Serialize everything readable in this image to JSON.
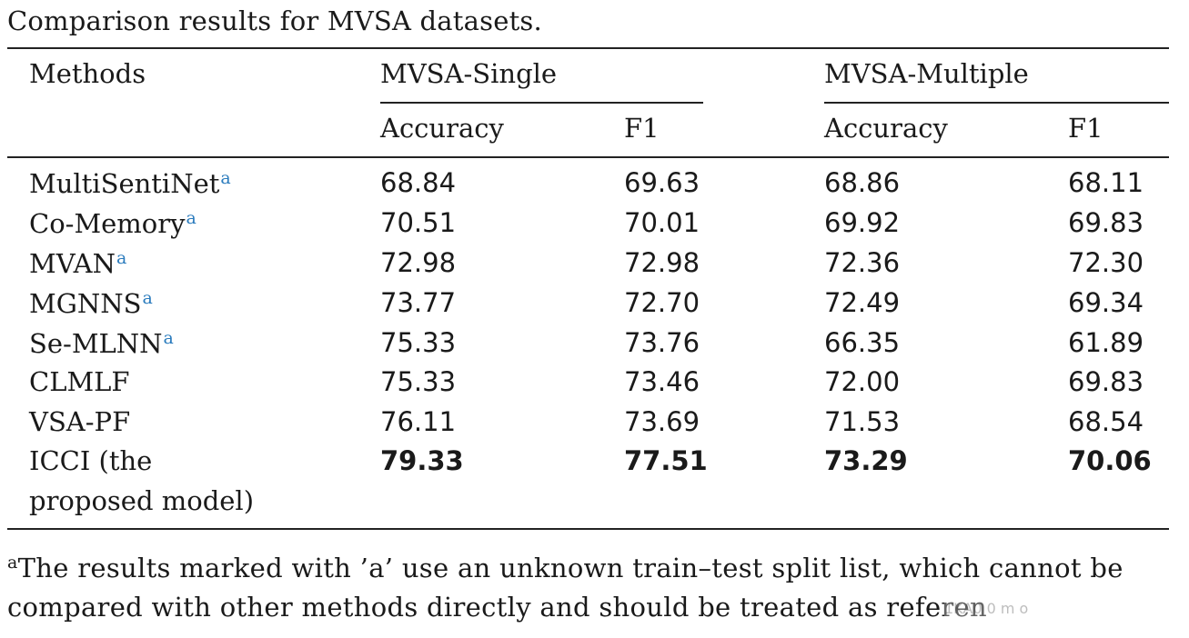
{
  "caption": "Comparison results for MVSA datasets.",
  "header": {
    "methods": "Methods",
    "group1": "MVSA-Single",
    "group2": "MVSA-Multiple",
    "g1_col1": "Accuracy",
    "g1_col2": "F1",
    "g2_col1": "Accuracy",
    "g2_col2": "F1"
  },
  "rows": [
    {
      "method": "MultiSentiNet",
      "mark": "a",
      "s_acc": "68.84",
      "s_f1": "69.63",
      "m_acc": "68.86",
      "m_f1": "68.11"
    },
    {
      "method": "Co-Memory",
      "mark": "a",
      "s_acc": "70.51",
      "s_f1": "70.01",
      "m_acc": "69.92",
      "m_f1": "69.83"
    },
    {
      "method": "MVAN",
      "mark": "a",
      "s_acc": "72.98",
      "s_f1": "72.98",
      "m_acc": "72.36",
      "m_f1": "72.30"
    },
    {
      "method": "MGNNS",
      "mark": "a",
      "s_acc": "73.77",
      "s_f1": "72.70",
      "m_acc": "72.49",
      "m_f1": "69.34"
    },
    {
      "method": "Se-MLNN",
      "mark": "a",
      "s_acc": "75.33",
      "s_f1": "73.76",
      "m_acc": "66.35",
      "m_f1": "61.89"
    },
    {
      "method": "CLMLF",
      "mark": "",
      "s_acc": "75.33",
      "s_f1": "73.46",
      "m_acc": "72.00",
      "m_f1": "69.83"
    },
    {
      "method": "VSA-PF",
      "mark": "",
      "s_acc": "76.11",
      "s_f1": "73.69",
      "m_acc": "71.53",
      "m_f1": "68.54"
    }
  ],
  "proposed": {
    "line1": "ICCI (the",
    "line2": "proposed model)",
    "s_acc": "79.33",
    "s_f1": "77.51",
    "m_acc": "73.29",
    "m_f1": "70.06"
  },
  "footnote": {
    "mark": "a",
    "line1": "The results marked with ’a’ use an unknown train–test split list, which cannot be",
    "line2": "compared with other methods directly and should be treated as referen"
  },
  "watermark": "1KA0 0 m o"
}
